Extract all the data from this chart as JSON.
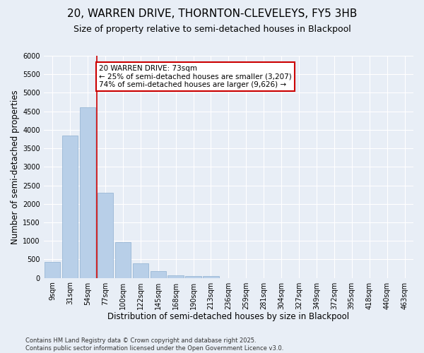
{
  "title1": "20, WARREN DRIVE, THORNTON-CLEVELEYS, FY5 3HB",
  "title2": "Size of property relative to semi-detached houses in Blackpool",
  "xlabel": "Distribution of semi-detached houses by size in Blackpool",
  "ylabel": "Number of semi-detached properties",
  "categories": [
    "9sqm",
    "31sqm",
    "54sqm",
    "77sqm",
    "100sqm",
    "122sqm",
    "145sqm",
    "168sqm",
    "190sqm",
    "213sqm",
    "236sqm",
    "259sqm",
    "281sqm",
    "304sqm",
    "327sqm",
    "349sqm",
    "372sqm",
    "395sqm",
    "418sqm",
    "440sqm",
    "463sqm"
  ],
  "values": [
    430,
    3850,
    4600,
    2300,
    970,
    400,
    180,
    70,
    55,
    50,
    0,
    0,
    0,
    0,
    0,
    0,
    0,
    0,
    0,
    0,
    0
  ],
  "bar_color": "#b8cfe8",
  "bar_edge_color": "#8eafd0",
  "vline_color": "#cc0000",
  "vline_x_index": 2.5,
  "annotation_text": "20 WARREN DRIVE: 73sqm\n← 25% of semi-detached houses are smaller (3,207)\n74% of semi-detached houses are larger (9,626) →",
  "annotation_box_color": "#ffffff",
  "annotation_box_edge": "#cc0000",
  "ylim": [
    0,
    6000
  ],
  "yticks": [
    0,
    500,
    1000,
    1500,
    2000,
    2500,
    3000,
    3500,
    4000,
    4500,
    5000,
    5500,
    6000
  ],
  "footer1": "Contains HM Land Registry data © Crown copyright and database right 2025.",
  "footer2": "Contains public sector information licensed under the Open Government Licence v3.0.",
  "bg_color": "#e8eef6",
  "plot_bg_color": "#e8eef6",
  "title_fontsize": 11,
  "subtitle_fontsize": 9,
  "tick_fontsize": 7,
  "label_fontsize": 8.5,
  "footer_fontsize": 6,
  "ann_fontsize": 7.5
}
